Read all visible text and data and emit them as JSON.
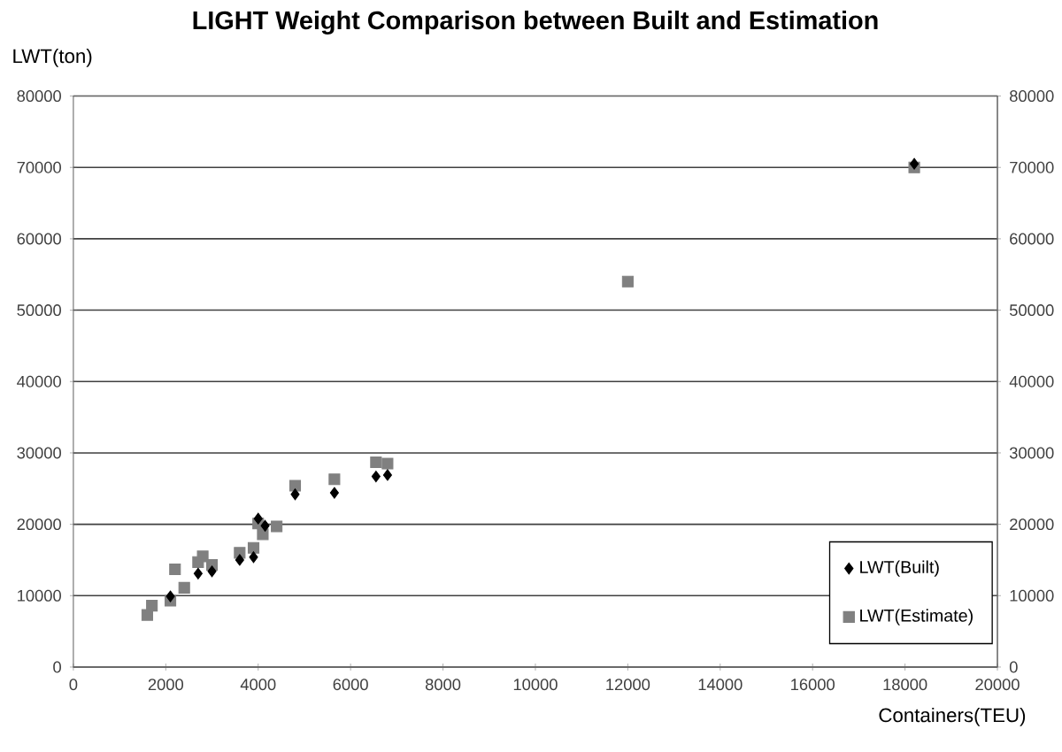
{
  "chart_data": {
    "type": "scatter",
    "title": "LIGHT Weight Comparison between Built and Estimation",
    "xlabel": "Containers(TEU)",
    "ylabel": "LWT(ton)",
    "xlim": [
      0,
      20000
    ],
    "xticks": [
      0,
      2000,
      4000,
      6000,
      8000,
      10000,
      12000,
      14000,
      16000,
      18000,
      20000
    ],
    "ylim": [
      0,
      80000
    ],
    "yticks": [
      0,
      10000,
      20000,
      30000,
      40000,
      50000,
      60000,
      70000,
      80000
    ],
    "y2lim": [
      0,
      80000
    ],
    "y2ticks": [
      0,
      10000,
      20000,
      30000,
      40000,
      50000,
      60000,
      70000,
      80000
    ],
    "grid": "y",
    "legend": "bottom right",
    "series": [
      {
        "name": "LWT(Built)",
        "color": "#000000",
        "marker": "diamond",
        "x": [
          2100,
          2700,
          3000,
          3600,
          3900,
          4000,
          4150,
          4800,
          5650,
          6550,
          6800,
          12000,
          18200
        ],
        "values": [
          9900,
          13100,
          13400,
          15000,
          15400,
          20800,
          19800,
          24200,
          24400,
          26700,
          26900,
          null,
          70500
        ]
      },
      {
        "name": "LWT(Estimate)",
        "color": "#808080",
        "marker": "square",
        "x": [
          1600,
          1700,
          2100,
          2200,
          2400,
          2700,
          2800,
          3000,
          3600,
          3900,
          4000,
          4100,
          4400,
          4800,
          5650,
          6550,
          6800,
          12000,
          18200
        ],
        "values": [
          7300,
          8600,
          9300,
          13700,
          11100,
          14700,
          15500,
          14300,
          16000,
          16700,
          20100,
          18600,
          19700,
          25400,
          26300,
          28700,
          28500,
          54000,
          70000
        ]
      }
    ]
  }
}
